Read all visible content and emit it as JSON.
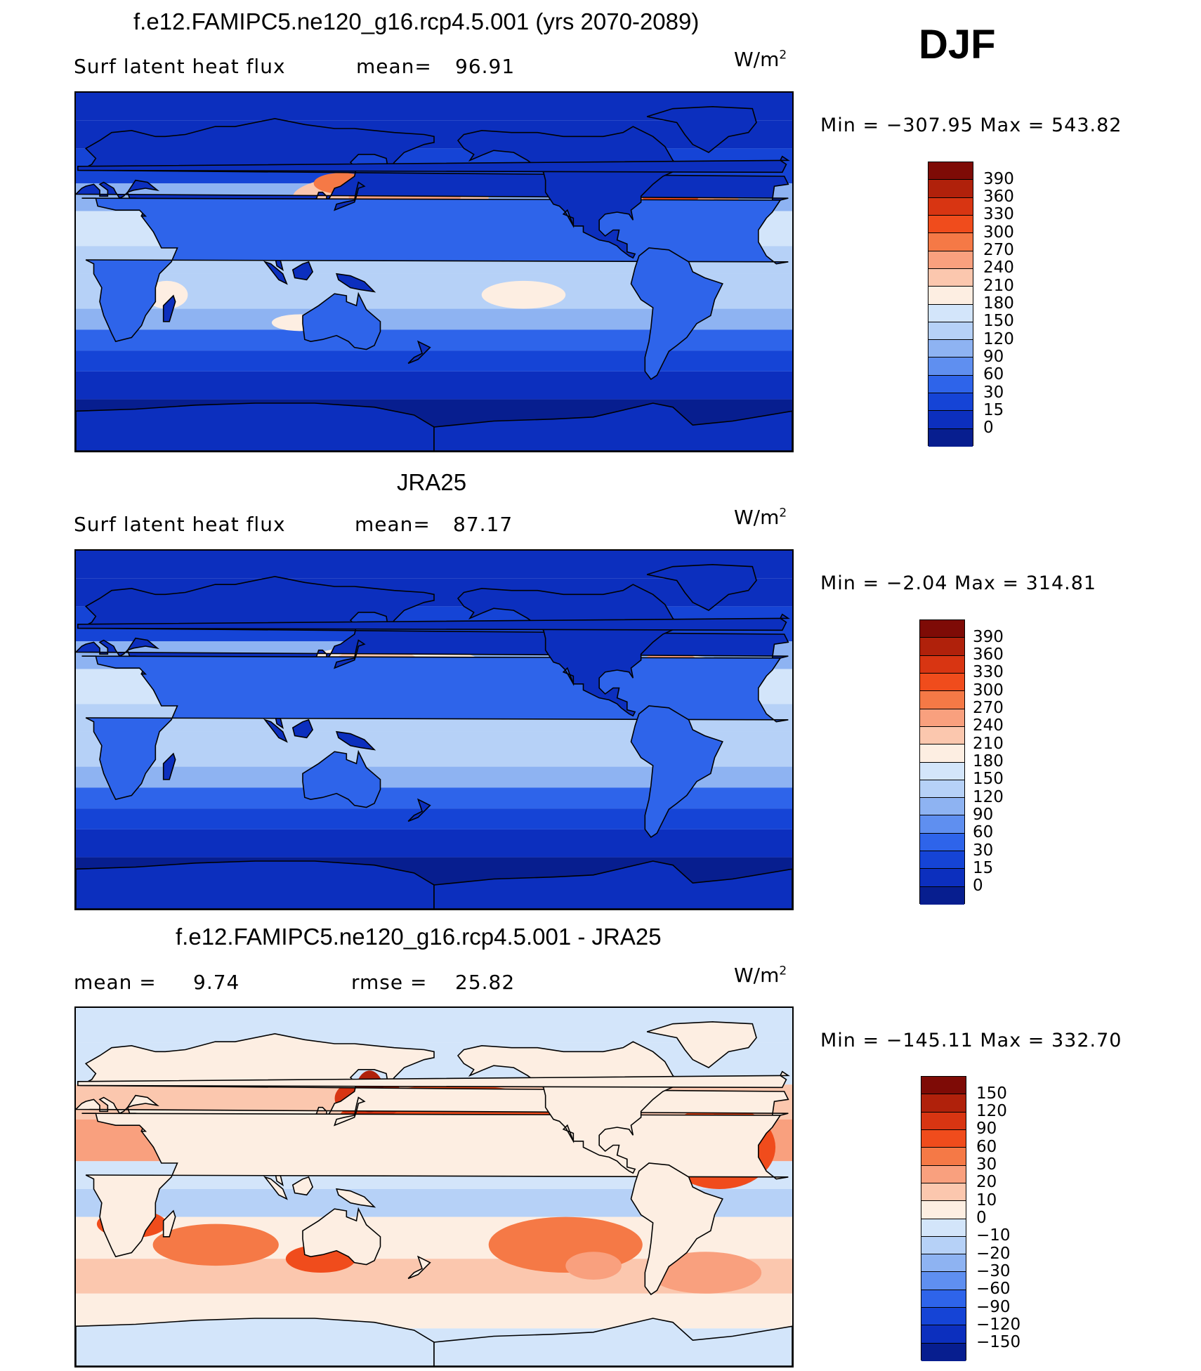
{
  "season": "DJF",
  "panels": [
    {
      "id": "model",
      "title": "f.e12.FAMIPC5.ne120_g16.rcp4.5.001 (yrs 2070-2089)",
      "left_label": "Surf latent heat flux",
      "stat1_label": "mean=",
      "stat1_value": "96.91",
      "units": "W/m",
      "units_exp": "2",
      "min_label": "Min = −307.95 Max = 543.82",
      "colorbar": {
        "ticks": [
          "390",
          "360",
          "330",
          "300",
          "270",
          "240",
          "210",
          "180",
          "150",
          "120",
          "90",
          "60",
          "30",
          "15",
          "0"
        ],
        "colors": [
          "#7e0b06",
          "#b0210b",
          "#d83512",
          "#f04c1c",
          "#f57946",
          "#f9a07e",
          "#fbc7ae",
          "#fdeee2",
          "#d3e5fa",
          "#b6d1f7",
          "#8eb3f2",
          "#5f8ff0",
          "#2e64ea",
          "#1544d6",
          "#0c2fbe",
          "#071e8f"
        ]
      },
      "map_palette": [
        "#071e8f",
        "#0c2fbe",
        "#1544d6",
        "#2e64ea",
        "#5f8ff0",
        "#8eb3f2",
        "#b6d1f7",
        "#d3e5fa",
        "#fdeee2",
        "#fbc7ae",
        "#f9a07e",
        "#f57946",
        "#f04c1c",
        "#d83512"
      ]
    },
    {
      "id": "obs",
      "title": "JRA25",
      "left_label": "Surf latent heat flux",
      "stat1_label": "mean=",
      "stat1_value": "87.17",
      "units": "W/m",
      "units_exp": "2",
      "min_label": "Min =  −2.04 Max = 314.81",
      "colorbar": {
        "ticks": [
          "390",
          "360",
          "330",
          "300",
          "270",
          "240",
          "210",
          "180",
          "150",
          "120",
          "90",
          "60",
          "30",
          "15",
          "0"
        ],
        "colors": [
          "#7e0b06",
          "#b0210b",
          "#d83512",
          "#f04c1c",
          "#f57946",
          "#f9a07e",
          "#fbc7ae",
          "#fdeee2",
          "#d3e5fa",
          "#b6d1f7",
          "#8eb3f2",
          "#5f8ff0",
          "#2e64ea",
          "#1544d6",
          "#0c2fbe",
          "#071e8f"
        ]
      },
      "map_palette": [
        "#071e8f",
        "#0c2fbe",
        "#1544d6",
        "#2e64ea",
        "#5f8ff0",
        "#8eb3f2",
        "#b6d1f7",
        "#d3e5fa",
        "#fdeee2",
        "#fbc7ae",
        "#f9a07e"
      ]
    },
    {
      "id": "diff",
      "title": "f.e12.FAMIPC5.ne120_g16.rcp4.5.001 - JRA25",
      "left_label": "mean =",
      "stat1_label": "",
      "stat1_value": "9.74",
      "stat2_label": "rmse =",
      "stat2_value": "25.82",
      "units": "W/m",
      "units_exp": "2",
      "min_label": "Min = −145.11 Max = 332.70",
      "colorbar": {
        "ticks": [
          "150",
          "120",
          "90",
          "60",
          "30",
          "20",
          "10",
          "0",
          "−10",
          "−20",
          "−30",
          "−60",
          "−90",
          "−120",
          "−150"
        ],
        "colors": [
          "#7e0b06",
          "#b0210b",
          "#d83512",
          "#f04c1c",
          "#f57946",
          "#f9a07e",
          "#fbc7ae",
          "#fdeee2",
          "#d3e5fa",
          "#b6d1f7",
          "#8eb3f2",
          "#5f8ff0",
          "#2e64ea",
          "#1544d6",
          "#0c2fbe",
          "#071e8f"
        ]
      },
      "map_palette": [
        "#2e64ea",
        "#5f8ff0",
        "#8eb3f2",
        "#b6d1f7",
        "#d3e5fa",
        "#fdeee2",
        "#fbc7ae",
        "#f9a07e",
        "#f57946",
        "#f04c1c",
        "#d83512",
        "#b0210b"
      ]
    }
  ]
}
